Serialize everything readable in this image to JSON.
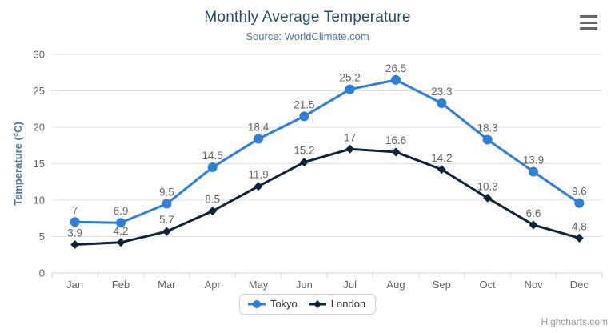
{
  "chart_data": {
    "type": "line",
    "title": "Monthly Average Temperature",
    "subtitle": "Source: WorldClimate.com",
    "categories": [
      "Jan",
      "Feb",
      "Mar",
      "Apr",
      "May",
      "Jun",
      "Jul",
      "Aug",
      "Sep",
      "Oct",
      "Nov",
      "Dec"
    ],
    "series": [
      {
        "name": "Tokyo",
        "color": "#2f7ed8",
        "marker": "circle",
        "values": [
          7,
          6.9,
          9.5,
          14.5,
          18.4,
          21.5,
          25.2,
          26.5,
          23.3,
          18.3,
          13.9,
          9.6
        ]
      },
      {
        "name": "London",
        "color": "#0d233a",
        "marker": "diamond",
        "values": [
          3.9,
          4.2,
          5.7,
          8.5,
          11.9,
          15.2,
          17,
          16.6,
          14.2,
          10.3,
          6.6,
          4.8
        ]
      }
    ],
    "xlabel": "",
    "ylabel": "Temperature (°C)",
    "ylim": [
      0,
      30
    ],
    "yticks": [
      0,
      5,
      10,
      15,
      20,
      25,
      30
    ],
    "grid": true,
    "legend_position": "bottom",
    "data_labels": true
  },
  "credits": "Highcharts.com",
  "icons": {
    "context_menu": "hamburger-icon"
  },
  "colors": {
    "title": "#274b6d",
    "subtitle": "#4d759e",
    "axis_title": "#4d759e",
    "tick_label": "#666666",
    "data_label": "#666666",
    "gridline": "#e0e0e0",
    "axis_line": "#ccd6eb",
    "legend_text": "#333333",
    "credits": "#999999",
    "menu_icon": "#666666"
  }
}
